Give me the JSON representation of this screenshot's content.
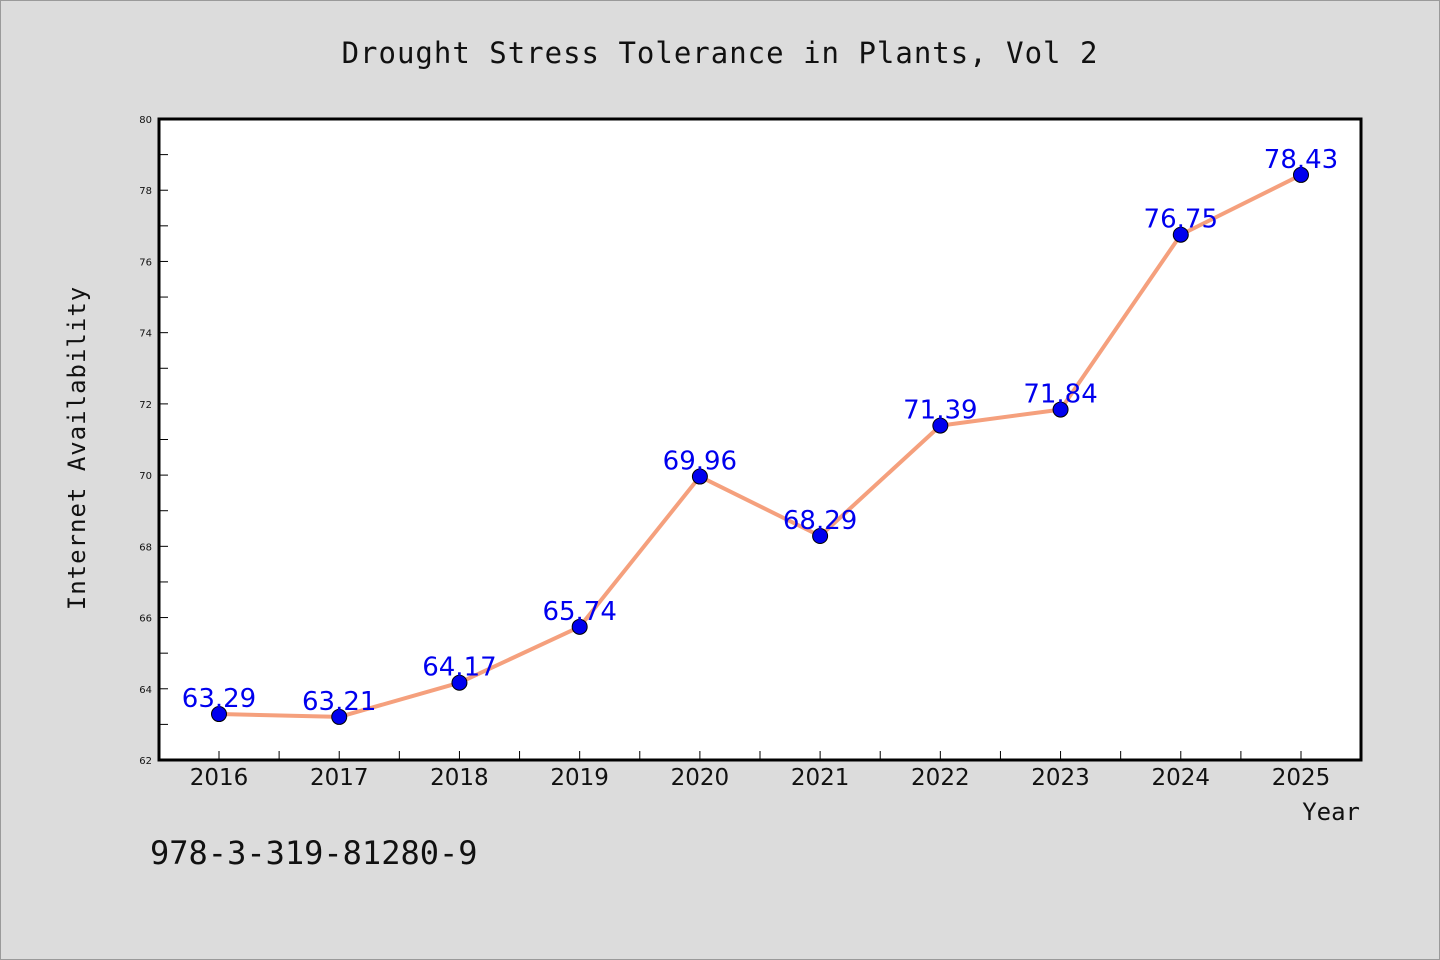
{
  "chart_data": {
    "type": "line",
    "title": "Drought Stress Tolerance in Plants, Vol 2",
    "xlabel": "Year",
    "ylabel": "Internet Availability",
    "categories": [
      "2016",
      "2017",
      "2018",
      "2019",
      "2020",
      "2021",
      "2022",
      "2023",
      "2024",
      "2025"
    ],
    "series": [
      {
        "values": [
          63.29,
          63.21,
          64.17,
          65.74,
          69.96,
          68.29,
          71.39,
          71.84,
          76.75,
          78.43
        ],
        "line_color": "#f5a07d",
        "marker_color": "#0000ee",
        "label_color": "#0000ee"
      }
    ],
    "data_labels": [
      "63.29",
      "63.21",
      "64.17",
      "65.74",
      "69.96",
      "68.29",
      "71.39",
      "71.84",
      "76.75",
      "78.43"
    ],
    "ylim": [
      62,
      80
    ],
    "yticks": [
      62,
      64,
      66,
      68,
      70,
      72,
      74,
      76,
      78,
      80
    ],
    "grid": false,
    "legend": "none"
  },
  "footer": {
    "isbn": "978-3-319-81280-9"
  }
}
